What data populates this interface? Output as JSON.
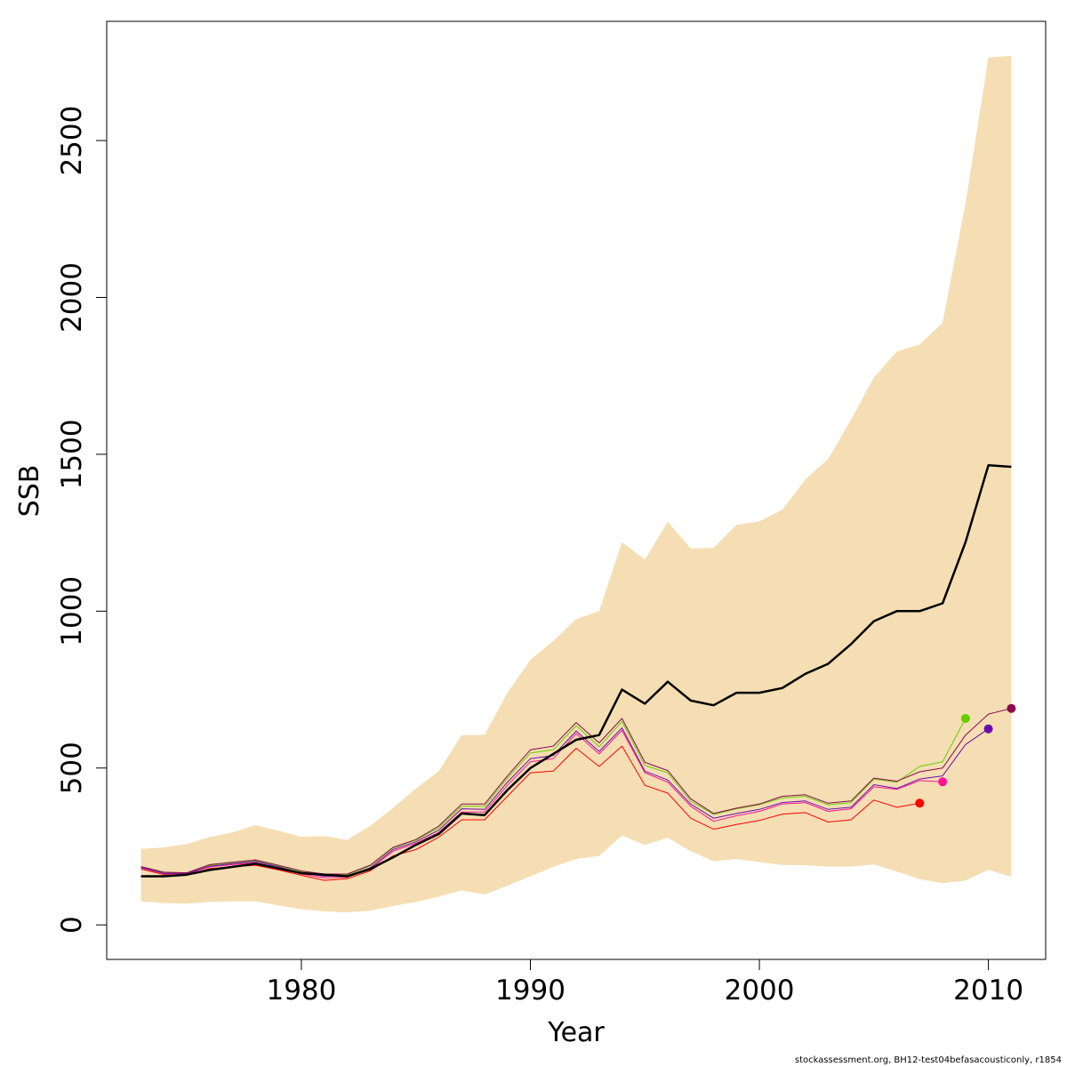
{
  "chart_data": {
    "type": "line",
    "xlabel": "Year",
    "ylabel": "SSB",
    "xlim": [
      1971.5,
      2012.5
    ],
    "ylim": [
      -110,
      2880
    ],
    "x_ticks": [
      1980,
      1990,
      2000,
      2010
    ],
    "y_ticks": [
      0,
      500,
      1000,
      1500,
      2000,
      2500
    ],
    "grid": false,
    "legend": "none",
    "band_color": "#f5deb3",
    "confidence_band": {
      "x": [
        1973,
        1974,
        1975,
        1976,
        1977,
        1978,
        1979,
        1980,
        1981,
        1982,
        1983,
        1984,
        1985,
        1986,
        1987,
        1988,
        1989,
        1990,
        1991,
        1992,
        1993,
        1994,
        1995,
        1996,
        1997,
        1998,
        1999,
        2000,
        2001,
        2002,
        2003,
        2004,
        2005,
        2006,
        2007,
        2008,
        2009,
        2010,
        2011
      ],
      "lower": [
        75,
        70,
        68,
        73,
        75,
        75,
        62,
        50,
        43,
        40,
        45,
        60,
        73,
        90,
        110,
        97,
        125,
        155,
        185,
        210,
        220,
        285,
        255,
        278,
        235,
        203,
        210,
        200,
        191,
        190,
        186,
        186,
        193,
        170,
        146,
        133,
        141,
        176,
        153
      ],
      "upper": [
        242,
        247,
        258,
        280,
        295,
        318,
        300,
        281,
        283,
        271,
        315,
        373,
        435,
        490,
        605,
        606,
        740,
        845,
        905,
        975,
        1000,
        1220,
        1165,
        1285,
        1200,
        1202,
        1275,
        1286,
        1323,
        1420,
        1485,
        1610,
        1745,
        1828,
        1850,
        1920,
        2300,
        2765,
        2770
      ]
    },
    "series": [
      {
        "color": "#000000",
        "line_width": 2.5,
        "x": [
          1973,
          1974,
          1975,
          1976,
          1977,
          1978,
          1979,
          1980,
          1981,
          1982,
          1983,
          1984,
          1985,
          1986,
          1987,
          1988,
          1989,
          1990,
          1991,
          1992,
          1993,
          1994,
          1995,
          1996,
          1997,
          1998,
          1999,
          2000,
          2001,
          2002,
          2003,
          2004,
          2005,
          2006,
          2007,
          2008,
          2009,
          2010,
          2011
        ],
        "values": [
          155,
          155,
          160,
          175,
          185,
          195,
          180,
          165,
          160,
          155,
          178,
          215,
          255,
          290,
          355,
          350,
          430,
          500,
          545,
          590,
          605,
          750,
          705,
          775,
          715,
          700,
          740,
          740,
          755,
          800,
          832,
          895,
          968,
          1000,
          1000,
          1025,
          1220,
          1465,
          1460
        ]
      },
      {
        "color": "#ff0000",
        "line_width": 1,
        "end_marker": true,
        "x": [
          1973,
          1974,
          1975,
          1976,
          1977,
          1978,
          1979,
          1980,
          1981,
          1982,
          1983,
          1984,
          1985,
          1986,
          1987,
          1988,
          1989,
          1990,
          1991,
          1992,
          1993,
          1994,
          1995,
          1996,
          1997,
          1998,
          1999,
          2000,
          2001,
          2002,
          2003,
          2004,
          2005,
          2006,
          2007
        ],
        "values": [
          178,
          160,
          158,
          180,
          185,
          190,
          175,
          158,
          142,
          147,
          172,
          220,
          240,
          280,
          335,
          335,
          410,
          485,
          490,
          563,
          505,
          570,
          445,
          420,
          340,
          305,
          320,
          333,
          353,
          358,
          328,
          335,
          398,
          375,
          388
        ]
      },
      {
        "color": "#ff1493",
        "line_width": 1,
        "end_marker": true,
        "x": [
          1973,
          1974,
          1975,
          1976,
          1977,
          1978,
          1979,
          1980,
          1981,
          1982,
          1983,
          1984,
          1985,
          1986,
          1987,
          1988,
          1989,
          1990,
          1991,
          1992,
          1993,
          1994,
          1995,
          1996,
          1997,
          1998,
          1999,
          2000,
          2001,
          2002,
          2003,
          2004,
          2005,
          2006,
          2007,
          2008
        ],
        "values": [
          182,
          163,
          162,
          185,
          192,
          198,
          182,
          162,
          150,
          152,
          178,
          235,
          260,
          295,
          360,
          360,
          445,
          520,
          530,
          610,
          545,
          620,
          485,
          455,
          378,
          330,
          348,
          362,
          385,
          390,
          362,
          370,
          440,
          432,
          460,
          456
        ]
      },
      {
        "color": "#66cc00",
        "line_width": 1,
        "end_marker": true,
        "x": [
          1973,
          1974,
          1975,
          1976,
          1977,
          1978,
          1979,
          1980,
          1981,
          1982,
          1983,
          1984,
          1985,
          1986,
          1987,
          1988,
          1989,
          1990,
          1991,
          1992,
          1993,
          1994,
          1995,
          1996,
          1997,
          1998,
          1999,
          2000,
          2001,
          2002,
          2003,
          2004,
          2005,
          2006,
          2007,
          2008,
          2009
        ],
        "values": [
          184,
          166,
          166,
          190,
          198,
          205,
          188,
          170,
          160,
          160,
          188,
          245,
          270,
          310,
          378,
          378,
          468,
          548,
          558,
          635,
          568,
          648,
          508,
          485,
          395,
          352,
          370,
          383,
          405,
          410,
          383,
          390,
          465,
          455,
          505,
          520,
          658
        ]
      },
      {
        "color": "#6a0dad",
        "line_width": 1,
        "end_marker": true,
        "x": [
          1973,
          1974,
          1975,
          1976,
          1977,
          1978,
          1979,
          1980,
          1981,
          1982,
          1983,
          1984,
          1985,
          1986,
          1987,
          1988,
          1989,
          1990,
          1991,
          1992,
          1993,
          1994,
          1995,
          1996,
          1997,
          1998,
          1999,
          2000,
          2001,
          2002,
          2003,
          2004,
          2005,
          2006,
          2007,
          2008,
          2009,
          2010
        ],
        "values": [
          183,
          164,
          164,
          187,
          195,
          202,
          185,
          166,
          155,
          156,
          182,
          240,
          265,
          302,
          370,
          368,
          455,
          530,
          540,
          618,
          553,
          628,
          490,
          462,
          385,
          340,
          355,
          368,
          390,
          395,
          368,
          375,
          447,
          435,
          465,
          475,
          575,
          625
        ]
      },
      {
        "color": "#8b0a50",
        "line_width": 1,
        "end_marker": true,
        "x": [
          1973,
          1974,
          1975,
          1976,
          1977,
          1978,
          1979,
          1980,
          1981,
          1982,
          1983,
          1984,
          1985,
          1986,
          1987,
          1988,
          1989,
          1990,
          1991,
          1992,
          1993,
          1994,
          1995,
          1996,
          1997,
          1998,
          1999,
          2000,
          2001,
          2002,
          2003,
          2004,
          2005,
          2006,
          2007,
          2008,
          2009,
          2010,
          2011
        ],
        "values": [
          186,
          168,
          166,
          192,
          200,
          207,
          190,
          172,
          162,
          162,
          190,
          247,
          272,
          315,
          385,
          385,
          475,
          558,
          570,
          645,
          580,
          658,
          518,
          492,
          402,
          355,
          372,
          385,
          410,
          415,
          388,
          395,
          468,
          458,
          488,
          500,
          605,
          672,
          690
        ]
      }
    ]
  },
  "footer": "stockassessment.org, BH12-test04befasacousticonly, r1854"
}
